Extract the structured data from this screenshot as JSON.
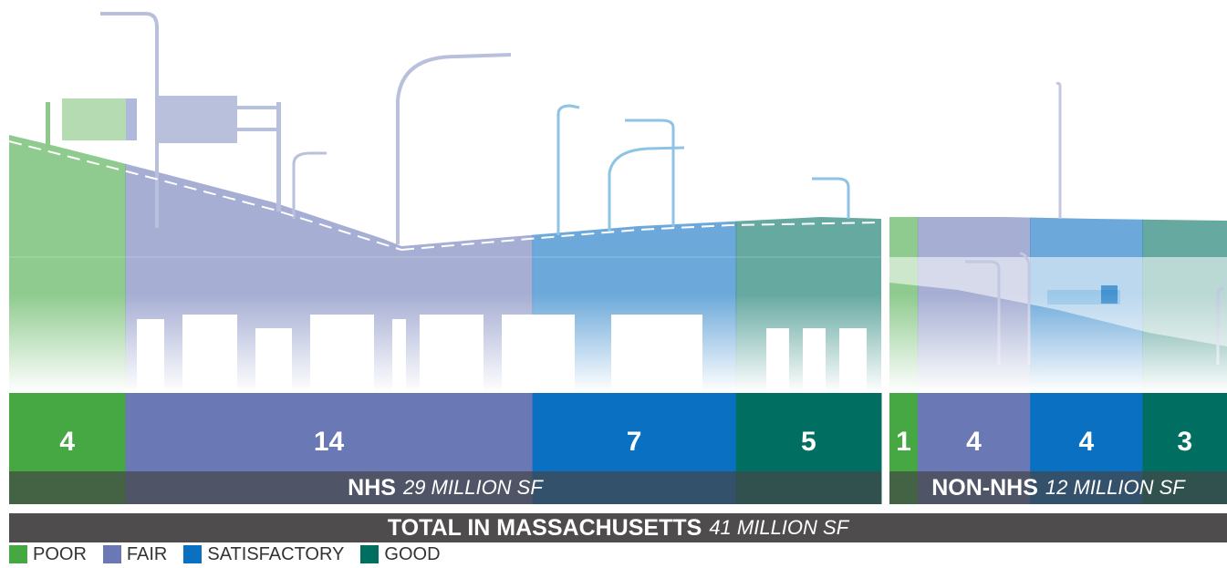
{
  "colors": {
    "poor": "#45a843",
    "fair": "#6a78b5",
    "satisfactory": "#0a70c2",
    "good": "#006f62",
    "band": "#555555",
    "total": "#4f4c4d"
  },
  "chart_data": {
    "type": "bar",
    "stacked": true,
    "orientation": "horizontal",
    "unit": "MILLION SF",
    "categories": [
      "POOR",
      "FAIR",
      "SATISFACTORY",
      "GOOD"
    ],
    "series": [
      {
        "name": "NHS",
        "values": [
          4,
          14,
          7,
          5
        ]
      },
      {
        "name": "NON-NHS",
        "values": [
          1,
          4,
          4,
          3
        ]
      }
    ],
    "legend_position": "bottom-left"
  },
  "bars": {
    "nhs": [
      "4",
      "14",
      "7",
      "5"
    ],
    "nonnhs": [
      "1",
      "4",
      "4",
      "3"
    ]
  },
  "labels": {
    "nhs_name": "NHS",
    "nhs_total": "29 MILLION SF",
    "nonnhs_name": "NON-NHS",
    "nonnhs_total": "12 MILLION SF",
    "total_name": "TOTAL IN MASSACHUSETTS",
    "total_value": "41 MILLION SF"
  },
  "legend": [
    {
      "label": "POOR",
      "color": "#45a843"
    },
    {
      "label": "FAIR",
      "color": "#6a78b5"
    },
    {
      "label": "SATISFACTORY",
      "color": "#0a70c2"
    },
    {
      "label": "GOOD",
      "color": "#006f62"
    }
  ]
}
